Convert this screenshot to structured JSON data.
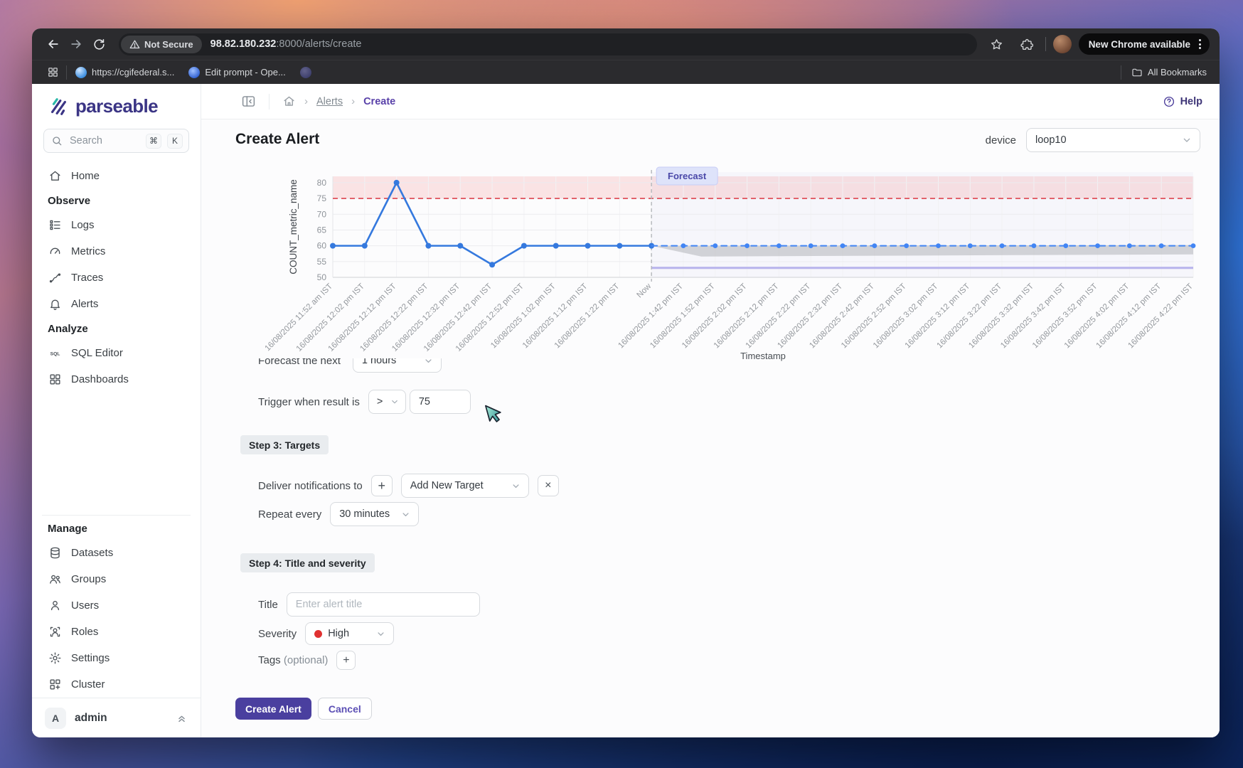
{
  "browser": {
    "not_secure": "Not Secure",
    "url_host": "98.82.180.232",
    "url_path": ":8000/alerts/create",
    "update_pill": "New Chrome available",
    "bookmarks": [
      {
        "label": "https://cgifederal.s...",
        "favicon": "blue-globe-favicon"
      },
      {
        "label": "Edit prompt - Ope...",
        "favicon": "blue-circle-favicon"
      },
      {
        "label": "",
        "favicon": "purple-favicon"
      }
    ],
    "all_bookmarks": "All Bookmarks"
  },
  "sidebar": {
    "brand": "parseable",
    "search_placeholder": "Search",
    "shortcut": [
      "⌘",
      "K"
    ],
    "sections": [
      {
        "items": [
          {
            "icon": "home-icon",
            "label": "Home"
          }
        ]
      },
      {
        "label": "Observe",
        "items": [
          {
            "icon": "logs-icon",
            "label": "Logs"
          },
          {
            "icon": "metrics-icon",
            "label": "Metrics"
          },
          {
            "icon": "traces-icon",
            "label": "Traces"
          },
          {
            "icon": "alerts-icon",
            "label": "Alerts"
          }
        ]
      },
      {
        "label": "Analyze",
        "items": [
          {
            "icon": "sql-editor-icon",
            "label": "SQL Editor"
          },
          {
            "icon": "dashboards-icon",
            "label": "Dashboards"
          }
        ]
      },
      {
        "label": "Manage",
        "divider": true,
        "items": [
          {
            "icon": "datasets-icon",
            "label": "Datasets"
          },
          {
            "icon": "groups-icon",
            "label": "Groups"
          },
          {
            "icon": "users-icon",
            "label": "Users"
          },
          {
            "icon": "roles-icon",
            "label": "Roles"
          },
          {
            "icon": "settings-icon",
            "label": "Settings"
          },
          {
            "icon": "cluster-icon",
            "label": "Cluster"
          }
        ]
      }
    ],
    "user_initial": "A",
    "user_name": "admin"
  },
  "header": {
    "breadcrumb": [
      "Alerts",
      "Create"
    ],
    "help": "Help"
  },
  "page": {
    "title": "Create Alert",
    "device_label": "device",
    "device_value": "loop10"
  },
  "chart_data": {
    "type": "line",
    "ylabel": "COUNT_metric_name",
    "xlabel": "Timestamp",
    "ylim": [
      50,
      82
    ],
    "yticks": [
      50,
      55,
      60,
      65,
      70,
      75,
      80
    ],
    "x_labels": [
      "16/08/2025 11:52 am IST",
      "16/08/2025 12:02 pm IST",
      "16/08/2025 12:12 pm IST",
      "16/08/2025 12:22 pm IST",
      "16/08/2025 12:32 pm IST",
      "16/08/2025 12:42 pm IST",
      "16/08/2025 12:52 pm IST",
      "16/08/2025 1:02 pm IST",
      "16/08/2025 1:12 pm IST",
      "16/08/2025 1:22 pm IST",
      "Now",
      "16/08/2025 1:42 pm IST",
      "16/08/2025 1:52 pm IST",
      "16/08/2025 2:02 pm IST",
      "16/08/2025 2:12 pm IST",
      "16/08/2025 2:22 pm IST",
      "16/08/2025 2:32 pm IST",
      "16/08/2025 2:42 pm IST",
      "16/08/2025 2:52 pm IST",
      "16/08/2025 3:02 pm IST",
      "16/08/2025 3:12 pm IST",
      "16/08/2025 3:22 pm IST",
      "16/08/2025 3:32 pm IST",
      "16/08/2025 3:42 pm IST",
      "16/08/2025 3:52 pm IST",
      "16/08/2025 4:02 pm IST",
      "16/08/2025 4:12 pm IST",
      "16/08/2025 4:22 pm IST"
    ],
    "now_index": 10,
    "threshold": {
      "value": 75,
      "label": ""
    },
    "forecast_label": "Forecast",
    "forecast_band": {
      "upper": 60,
      "lower": 56.6
    },
    "forecast_lower_line": 53,
    "series": [
      {
        "name": "COUNT_metric_name",
        "kind": "actual",
        "color": "#3579de",
        "x": [
          0,
          1,
          2,
          3,
          4,
          5,
          6,
          7,
          8,
          9,
          10
        ],
        "values": [
          60,
          60,
          80,
          60,
          60,
          54,
          60,
          60,
          60,
          60,
          60
        ]
      },
      {
        "name": "Forecast",
        "kind": "forecast",
        "color": "#4285f4",
        "x": [
          10,
          11,
          12,
          13,
          14,
          15,
          16,
          17,
          18,
          19,
          20,
          21,
          22,
          23,
          24,
          25,
          26,
          27
        ],
        "values": [
          60,
          60,
          60,
          60,
          60,
          60,
          60,
          60,
          60,
          60,
          60,
          60,
          60,
          60,
          60,
          60,
          60,
          60
        ]
      }
    ],
    "colors": {
      "threshold": "#e15b64",
      "threshold_band": "rgba(240,100,100,0.16)",
      "forecast_bg": "rgba(140,140,220,0.05)",
      "band": "rgba(150,152,158,0.38)",
      "lower_line": "#b9b5ec",
      "now_line": "#b3b6bb"
    },
    "grid": true,
    "legend_position": "none"
  },
  "form": {
    "forecast_next_label": "Forecast the next",
    "forecast_next_value": "1 hours",
    "trigger_label": "Trigger when result is",
    "trigger_operator": ">",
    "trigger_value": "75",
    "step3_label": "Step 3: Targets",
    "deliver_label": "Deliver notifications to",
    "target_value": "Add New Target",
    "repeat_label": "Repeat every",
    "repeat_value": "30 minutes",
    "step4_label": "Step 4: Title and severity",
    "title_label": "Title",
    "title_placeholder": "Enter alert title",
    "severity_label": "Severity",
    "severity_value": "High",
    "severity_color": "#e03131",
    "tags_label": "Tags",
    "tags_optional": "(optional)",
    "create_button": "Create Alert",
    "cancel_button": "Cancel"
  }
}
